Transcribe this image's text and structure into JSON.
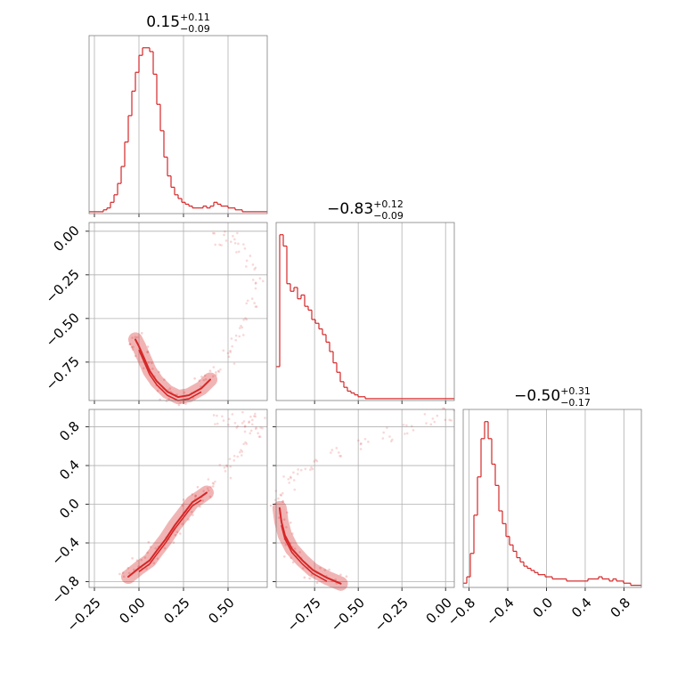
{
  "figure": {
    "type": "corner_plot",
    "color": "#d62728",
    "panel_border_color": "#7f7f7f",
    "grid_color": "#b0b0b0",
    "grid": true
  },
  "chart_data": [
    {
      "type": "histogram",
      "panel": "diag-1",
      "title_value": "0.15",
      "title_plus": "+0.11",
      "title_minus": "−0.09",
      "xlim": [
        -0.28,
        0.72
      ],
      "x_ticks": [
        -0.25,
        0.0,
        0.25,
        0.5
      ],
      "bin_edges_start": -0.28,
      "bin_width": 0.02,
      "counts": [
        1,
        1,
        1,
        1,
        2,
        3,
        6,
        10,
        16,
        25,
        38,
        52,
        65,
        75,
        84,
        88,
        88,
        86,
        74,
        58,
        44,
        30,
        20,
        14,
        10,
        8,
        6,
        5,
        4,
        3,
        3,
        3,
        4,
        3,
        4,
        6,
        5,
        4,
        4,
        3,
        3,
        2,
        2,
        1,
        1,
        1,
        1,
        1,
        1,
        1
      ]
    },
    {
      "type": "histogram",
      "panel": "diag-2",
      "title_value": "−0.83",
      "title_plus": "+0.12",
      "title_minus": "−0.09",
      "xlim": [
        -0.97,
        0.05
      ],
      "x_ticks": [
        "−0.75",
        "−0.50",
        "−0.25",
        "0.00"
      ],
      "x_tick_values": [
        -0.75,
        -0.5,
        -0.25,
        0.0
      ],
      "bin_edges_start": -0.97,
      "bin_width": 0.0204,
      "counts": [
        18,
        88,
        82,
        62,
        58,
        60,
        54,
        56,
        50,
        48,
        43,
        41,
        38,
        35,
        31,
        26,
        20,
        15,
        10,
        7,
        5,
        4,
        3,
        2,
        2,
        1,
        1,
        1,
        1,
        1,
        1,
        1,
        1,
        1,
        1,
        1,
        1,
        1,
        1,
        1,
        1,
        1,
        1,
        1,
        1,
        1,
        1,
        1,
        1,
        1
      ]
    },
    {
      "type": "histogram",
      "panel": "diag-3",
      "title_value": "−0.50",
      "title_plus": "+0.31",
      "title_minus": "−0.17",
      "xlim": [
        -0.86,
        0.98
      ],
      "x_ticks": [
        "−0.8",
        "−0.4",
        "0.0",
        "0.4",
        "0.8"
      ],
      "x_tick_values": [
        -0.8,
        -0.4,
        0.0,
        0.4,
        0.8
      ],
      "bin_edges_start": -0.86,
      "bin_width": 0.0368,
      "counts": [
        2,
        5,
        16,
        34,
        52,
        70,
        78,
        70,
        58,
        48,
        36,
        30,
        24,
        20,
        17,
        14,
        12,
        10,
        9,
        8,
        7,
        6,
        6,
        5,
        5,
        4,
        4,
        4,
        4,
        3,
        3,
        3,
        3,
        3,
        3,
        4,
        4,
        4,
        5,
        4,
        4,
        3,
        4,
        3,
        3,
        2,
        2,
        1,
        1,
        1
      ]
    },
    {
      "type": "scatter_density",
      "panel": "pair-2-1",
      "xlim": [
        -0.28,
        0.72
      ],
      "ylim": [
        -0.97,
        0.05
      ],
      "y_ticks": [
        "0.00",
        "−0.25",
        "−0.50",
        "−0.75"
      ],
      "y_tick_values": [
        0.0,
        -0.25,
        -0.5,
        -0.75
      ],
      "path_points": [
        [
          0.4,
          -0.85
        ],
        [
          0.35,
          -0.9
        ],
        [
          0.28,
          -0.94
        ],
        [
          0.22,
          -0.95
        ],
        [
          0.16,
          -0.92
        ],
        [
          0.1,
          -0.86
        ],
        [
          0.06,
          -0.8
        ],
        [
          0.03,
          -0.73
        ],
        [
          0.0,
          -0.66
        ],
        [
          -0.02,
          -0.62
        ]
      ],
      "sparse_points": [
        [
          0.45,
          -0.8
        ],
        [
          0.5,
          -0.72
        ],
        [
          0.55,
          -0.62
        ],
        [
          0.6,
          -0.52
        ],
        [
          0.64,
          -0.42
        ],
        [
          0.66,
          -0.3
        ],
        [
          0.62,
          -0.18
        ],
        [
          0.58,
          -0.08
        ],
        [
          0.52,
          -0.03
        ],
        [
          0.45,
          -0.05
        ]
      ]
    },
    {
      "type": "scatter_density",
      "panel": "pair-3-1",
      "xlim": [
        -0.28,
        0.72
      ],
      "ylim": [
        -0.86,
        0.98
      ],
      "y_ticks": [
        "0.8",
        "0.4",
        "0.0",
        "−0.4",
        "−0.8"
      ],
      "y_tick_values": [
        0.8,
        0.4,
        0.0,
        -0.4,
        -0.8
      ],
      "path_points": [
        [
          -0.06,
          -0.75
        ],
        [
          0.0,
          -0.66
        ],
        [
          0.06,
          -0.58
        ],
        [
          0.1,
          -0.48
        ],
        [
          0.15,
          -0.36
        ],
        [
          0.2,
          -0.22
        ],
        [
          0.25,
          -0.1
        ],
        [
          0.3,
          0.02
        ],
        [
          0.35,
          0.08
        ],
        [
          0.38,
          0.12
        ]
      ],
      "sparse_points": [
        [
          0.42,
          0.22
        ],
        [
          0.48,
          0.34
        ],
        [
          0.54,
          0.46
        ],
        [
          0.6,
          0.6
        ],
        [
          0.66,
          0.72
        ],
        [
          0.6,
          0.8
        ],
        [
          0.52,
          0.86
        ],
        [
          0.46,
          0.9
        ],
        [
          0.62,
          0.9
        ],
        [
          0.68,
          0.84
        ]
      ]
    },
    {
      "type": "scatter_density",
      "panel": "pair-3-2",
      "xlim": [
        -0.97,
        0.05
      ],
      "ylim": [
        -0.86,
        0.98
      ],
      "path_points": [
        [
          -0.6,
          -0.82
        ],
        [
          -0.68,
          -0.76
        ],
        [
          -0.76,
          -0.68
        ],
        [
          -0.82,
          -0.58
        ],
        [
          -0.88,
          -0.46
        ],
        [
          -0.92,
          -0.32
        ],
        [
          -0.94,
          -0.18
        ],
        [
          -0.95,
          -0.04
        ]
      ],
      "sparse_points": [
        [
          -0.94,
          0.1
        ],
        [
          -0.9,
          0.22
        ],
        [
          -0.84,
          0.32
        ],
        [
          -0.74,
          0.42
        ],
        [
          -0.62,
          0.52
        ],
        [
          -0.48,
          0.62
        ],
        [
          -0.34,
          0.72
        ],
        [
          -0.2,
          0.8
        ],
        [
          -0.08,
          0.88
        ],
        [
          0.02,
          0.92
        ]
      ]
    }
  ]
}
